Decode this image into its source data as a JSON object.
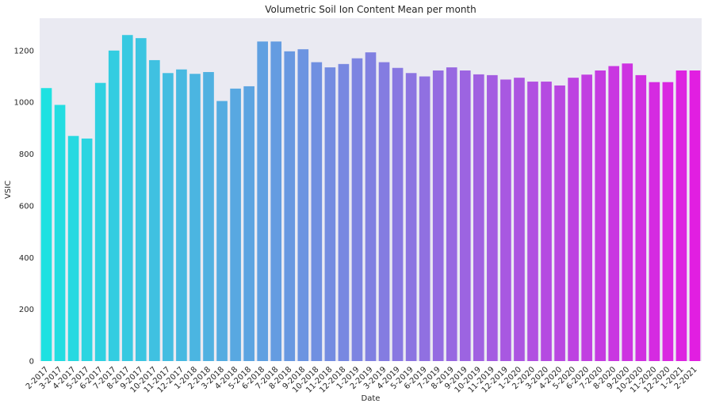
{
  "chart_data": {
    "type": "bar",
    "title": "Volumetric Soil Ion Content Mean per month",
    "xlabel": "Date",
    "ylabel": "VSIC",
    "ylim": [
      0,
      1325
    ],
    "yticks": [
      0,
      200,
      400,
      600,
      800,
      1000,
      1200
    ],
    "grid": false,
    "legend": "none",
    "colormap": "cool",
    "color_start": "#1fe1e1",
    "color_end": "#e11fe1",
    "background": "#eaeaf2",
    "categories": [
      "2-2017",
      "3-2017",
      "4-2017",
      "5-2017",
      "6-2017",
      "7-2017",
      "8-2017",
      "9-2017",
      "10-2017",
      "11-2017",
      "12-2017",
      "1-2018",
      "2-2018",
      "3-2018",
      "4-2018",
      "5-2018",
      "6-2018",
      "7-2018",
      "8-2018",
      "9-2018",
      "10-2018",
      "11-2018",
      "12-2018",
      "1-2019",
      "2-2019",
      "3-2019",
      "4-2019",
      "5-2019",
      "6-2019",
      "7-2019",
      "8-2019",
      "9-2019",
      "10-2019",
      "11-2019",
      "12-2019",
      "1-2020",
      "2-2020",
      "3-2020",
      "4-2020",
      "5-2020",
      "6-2020",
      "7-2020",
      "8-2020",
      "9-2020",
      "10-2020",
      "11-2020",
      "12-2020",
      "1-2021",
      "2-2021"
    ],
    "values": [
      1055,
      990,
      870,
      860,
      1075,
      1200,
      1260,
      1248,
      1163,
      1113,
      1127,
      1110,
      1117,
      1005,
      1053,
      1062,
      1235,
      1235,
      1197,
      1205,
      1155,
      1135,
      1148,
      1170,
      1193,
      1155,
      1133,
      1113,
      1100,
      1123,
      1135,
      1123,
      1108,
      1105,
      1088,
      1095,
      1080,
      1080,
      1065,
      1095,
      1107,
      1123,
      1140,
      1150,
      1105,
      1078,
      1078,
      1123,
      1123
    ]
  }
}
